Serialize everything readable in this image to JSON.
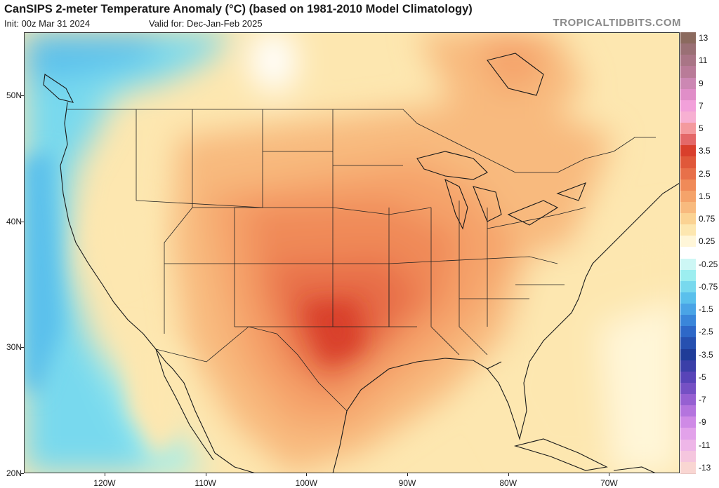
{
  "header": {
    "title": "CanSIPS 2-meter Temperature Anomaly (°C) (based on 1981-2010 Model Climatology)",
    "init": "Init: 00z Mar 31 2024",
    "valid": "Valid for: Dec-Jan-Feb 2025",
    "brand": "TROPICALTIDBITS.COM"
  },
  "map": {
    "lon_range": [
      -128,
      -63
    ],
    "lat_range": [
      20,
      55
    ],
    "lat_labels": [
      {
        "lat": 50,
        "label": "50N"
      },
      {
        "lat": 40,
        "label": "40N"
      },
      {
        "lat": 30,
        "label": "30N"
      },
      {
        "lat": 20,
        "label": "20N"
      }
    ],
    "lon_labels": [
      {
        "lon": -120,
        "label": "120W"
      },
      {
        "lon": -110,
        "label": "110W"
      },
      {
        "lon": -100,
        "label": "100W"
      },
      {
        "lon": -90,
        "label": "90W"
      },
      {
        "lon": -80,
        "label": "80W"
      },
      {
        "lon": -70,
        "label": "70W"
      }
    ]
  },
  "colorbar": {
    "levels": [
      {
        "label": "13",
        "color": "#8b6a5e"
      },
      {
        "label": "",
        "color": "#9a7075"
      },
      {
        "label": "11",
        "color": "#a97586"
      },
      {
        "label": "",
        "color": "#b97b98"
      },
      {
        "label": "9",
        "color": "#cc87b3"
      },
      {
        "label": "",
        "color": "#e08ec8"
      },
      {
        "label": "7",
        "color": "#f2a0da"
      },
      {
        "label": "",
        "color": "#f7b0d2"
      },
      {
        "label": "5",
        "color": "#f49a9e"
      },
      {
        "label": "",
        "color": "#e46868"
      },
      {
        "label": "3.5",
        "color": "#d93f2c"
      },
      {
        "label": "",
        "color": "#e0583a"
      },
      {
        "label": "2.5",
        "color": "#e8704a"
      },
      {
        "label": "",
        "color": "#f08a58"
      },
      {
        "label": "1.5",
        "color": "#f5a36a"
      },
      {
        "label": "",
        "color": "#f8ba7e"
      },
      {
        "label": "0.75",
        "color": "#fbd393"
      },
      {
        "label": "",
        "color": "#fde7b0"
      },
      {
        "label": "0.25",
        "color": "#fff6d8"
      },
      {
        "label": "",
        "color": "#ffffff"
      },
      {
        "label": "-0.25",
        "color": "#cdf7f5"
      },
      {
        "label": "",
        "color": "#9ceef0"
      },
      {
        "label": "-0.75",
        "color": "#78d9ee"
      },
      {
        "label": "",
        "color": "#5ac0ec"
      },
      {
        "label": "-1.5",
        "color": "#4aa4e6"
      },
      {
        "label": "",
        "color": "#3a86da"
      },
      {
        "label": "-2.5",
        "color": "#2e68c8"
      },
      {
        "label": "",
        "color": "#2650b0"
      },
      {
        "label": "-3.5",
        "color": "#1f3c98"
      },
      {
        "label": "",
        "color": "#3b3fa8"
      },
      {
        "label": "-5",
        "color": "#5844b8"
      },
      {
        "label": "",
        "color": "#7550c4"
      },
      {
        "label": "-7",
        "color": "#9660d2"
      },
      {
        "label": "",
        "color": "#b474de"
      },
      {
        "label": "-9",
        "color": "#cf8ae6"
      },
      {
        "label": "",
        "color": "#e2a2ea"
      },
      {
        "label": "-11",
        "color": "#eeb6e8"
      },
      {
        "label": "",
        "color": "#f5c6de"
      },
      {
        "label": "-13",
        "color": "#f9d6d2"
      }
    ]
  }
}
